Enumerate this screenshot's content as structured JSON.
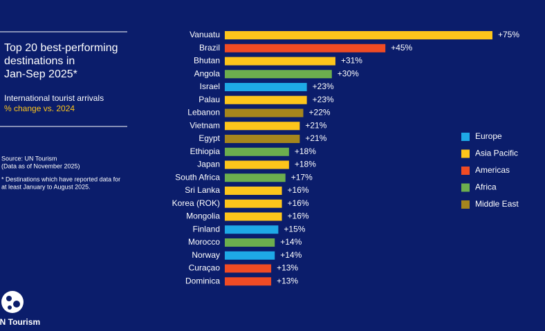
{
  "chart_data": {
    "type": "bar",
    "orientation": "horizontal",
    "title": "Top 20 best-performing destinations in Jan-Sep 2025*",
    "subtitle": "International tourist arrivals",
    "measure": "% change vs. 2024",
    "notes": [
      "Source: UN Tourism",
      "(Data as of November 2025)",
      "* Destinations which have reported data for",
      "at least January to August 2025."
    ],
    "logo": "UN Tourism",
    "categories": [
      "Vanuatu",
      "Brazil",
      "Bhutan",
      "Angola",
      "Israel",
      "Palau",
      "Lebanon",
      "Vietnam",
      "Egypt",
      "Ethiopia",
      "Japan",
      "South Africa",
      "Sri Lanka",
      "Korea (ROK)",
      "Mongolia",
      "Finland",
      "Morocco",
      "Norway",
      "Curaçao",
      "Dominica"
    ],
    "values": [
      75,
      45,
      31,
      30,
      23,
      23,
      22,
      21,
      21,
      18,
      18,
      17,
      16,
      16,
      16,
      15,
      14,
      14,
      13,
      13
    ],
    "value_labels": [
      "+75%",
      "+45%",
      "+31%",
      "+30%",
      "+23%",
      "+23%",
      "+22%",
      "+21%",
      "+21%",
      "+18%",
      "+18%",
      "+17%",
      "+16%",
      "+16%",
      "+16%",
      "+15%",
      "+14%",
      "+14%",
      "+13%",
      "+13%"
    ],
    "colors": [
      "#fdc51b",
      "#f04b24",
      "#fdc51b",
      "#6cae4e",
      "#1ea9e6",
      "#fdc51b",
      "#a6861d",
      "#fdc51b",
      "#a6861d",
      "#6cae4e",
      "#fdc51b",
      "#6cae4e",
      "#fdc51b",
      "#fdc51b",
      "#fdc51b",
      "#1ea9e6",
      "#6cae4e",
      "#1ea9e6",
      "#f04b24",
      "#f04b24"
    ],
    "legend": [
      {
        "name": "Europe",
        "color": "#1ea9e6"
      },
      {
        "name": "Asia Pacific",
        "color": "#fdc51b"
      },
      {
        "name": "Americas",
        "color": "#f04b24"
      },
      {
        "name": "Africa",
        "color": "#6cae4e"
      },
      {
        "name": "Middle East",
        "color": "#a6861d"
      }
    ]
  }
}
